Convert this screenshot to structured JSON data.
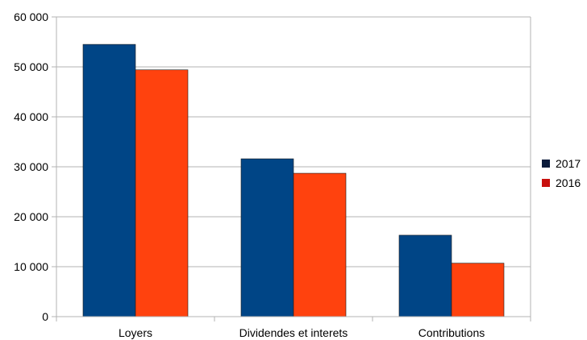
{
  "chart_data": {
    "type": "bar",
    "title": "",
    "xlabel": "",
    "ylabel": "",
    "categories": [
      "Loyers",
      "Dividendes et interets",
      "Contributions"
    ],
    "series": [
      {
        "name": "2017",
        "values": [
          54500,
          31600,
          16300
        ],
        "color": "#004586"
      },
      {
        "name": "2016",
        "values": [
          49400,
          28700,
          10700
        ],
        "color": "#ff420e"
      }
    ],
    "ylim": [
      0,
      60000
    ],
    "yticks": [
      0,
      10000,
      20000,
      30000,
      40000,
      50000,
      60000
    ],
    "ytick_labels": [
      "0",
      "10 000",
      "20 000",
      "30 000",
      "40 000",
      "50 000",
      "60 000"
    ],
    "grid": true,
    "legend": "right"
  }
}
